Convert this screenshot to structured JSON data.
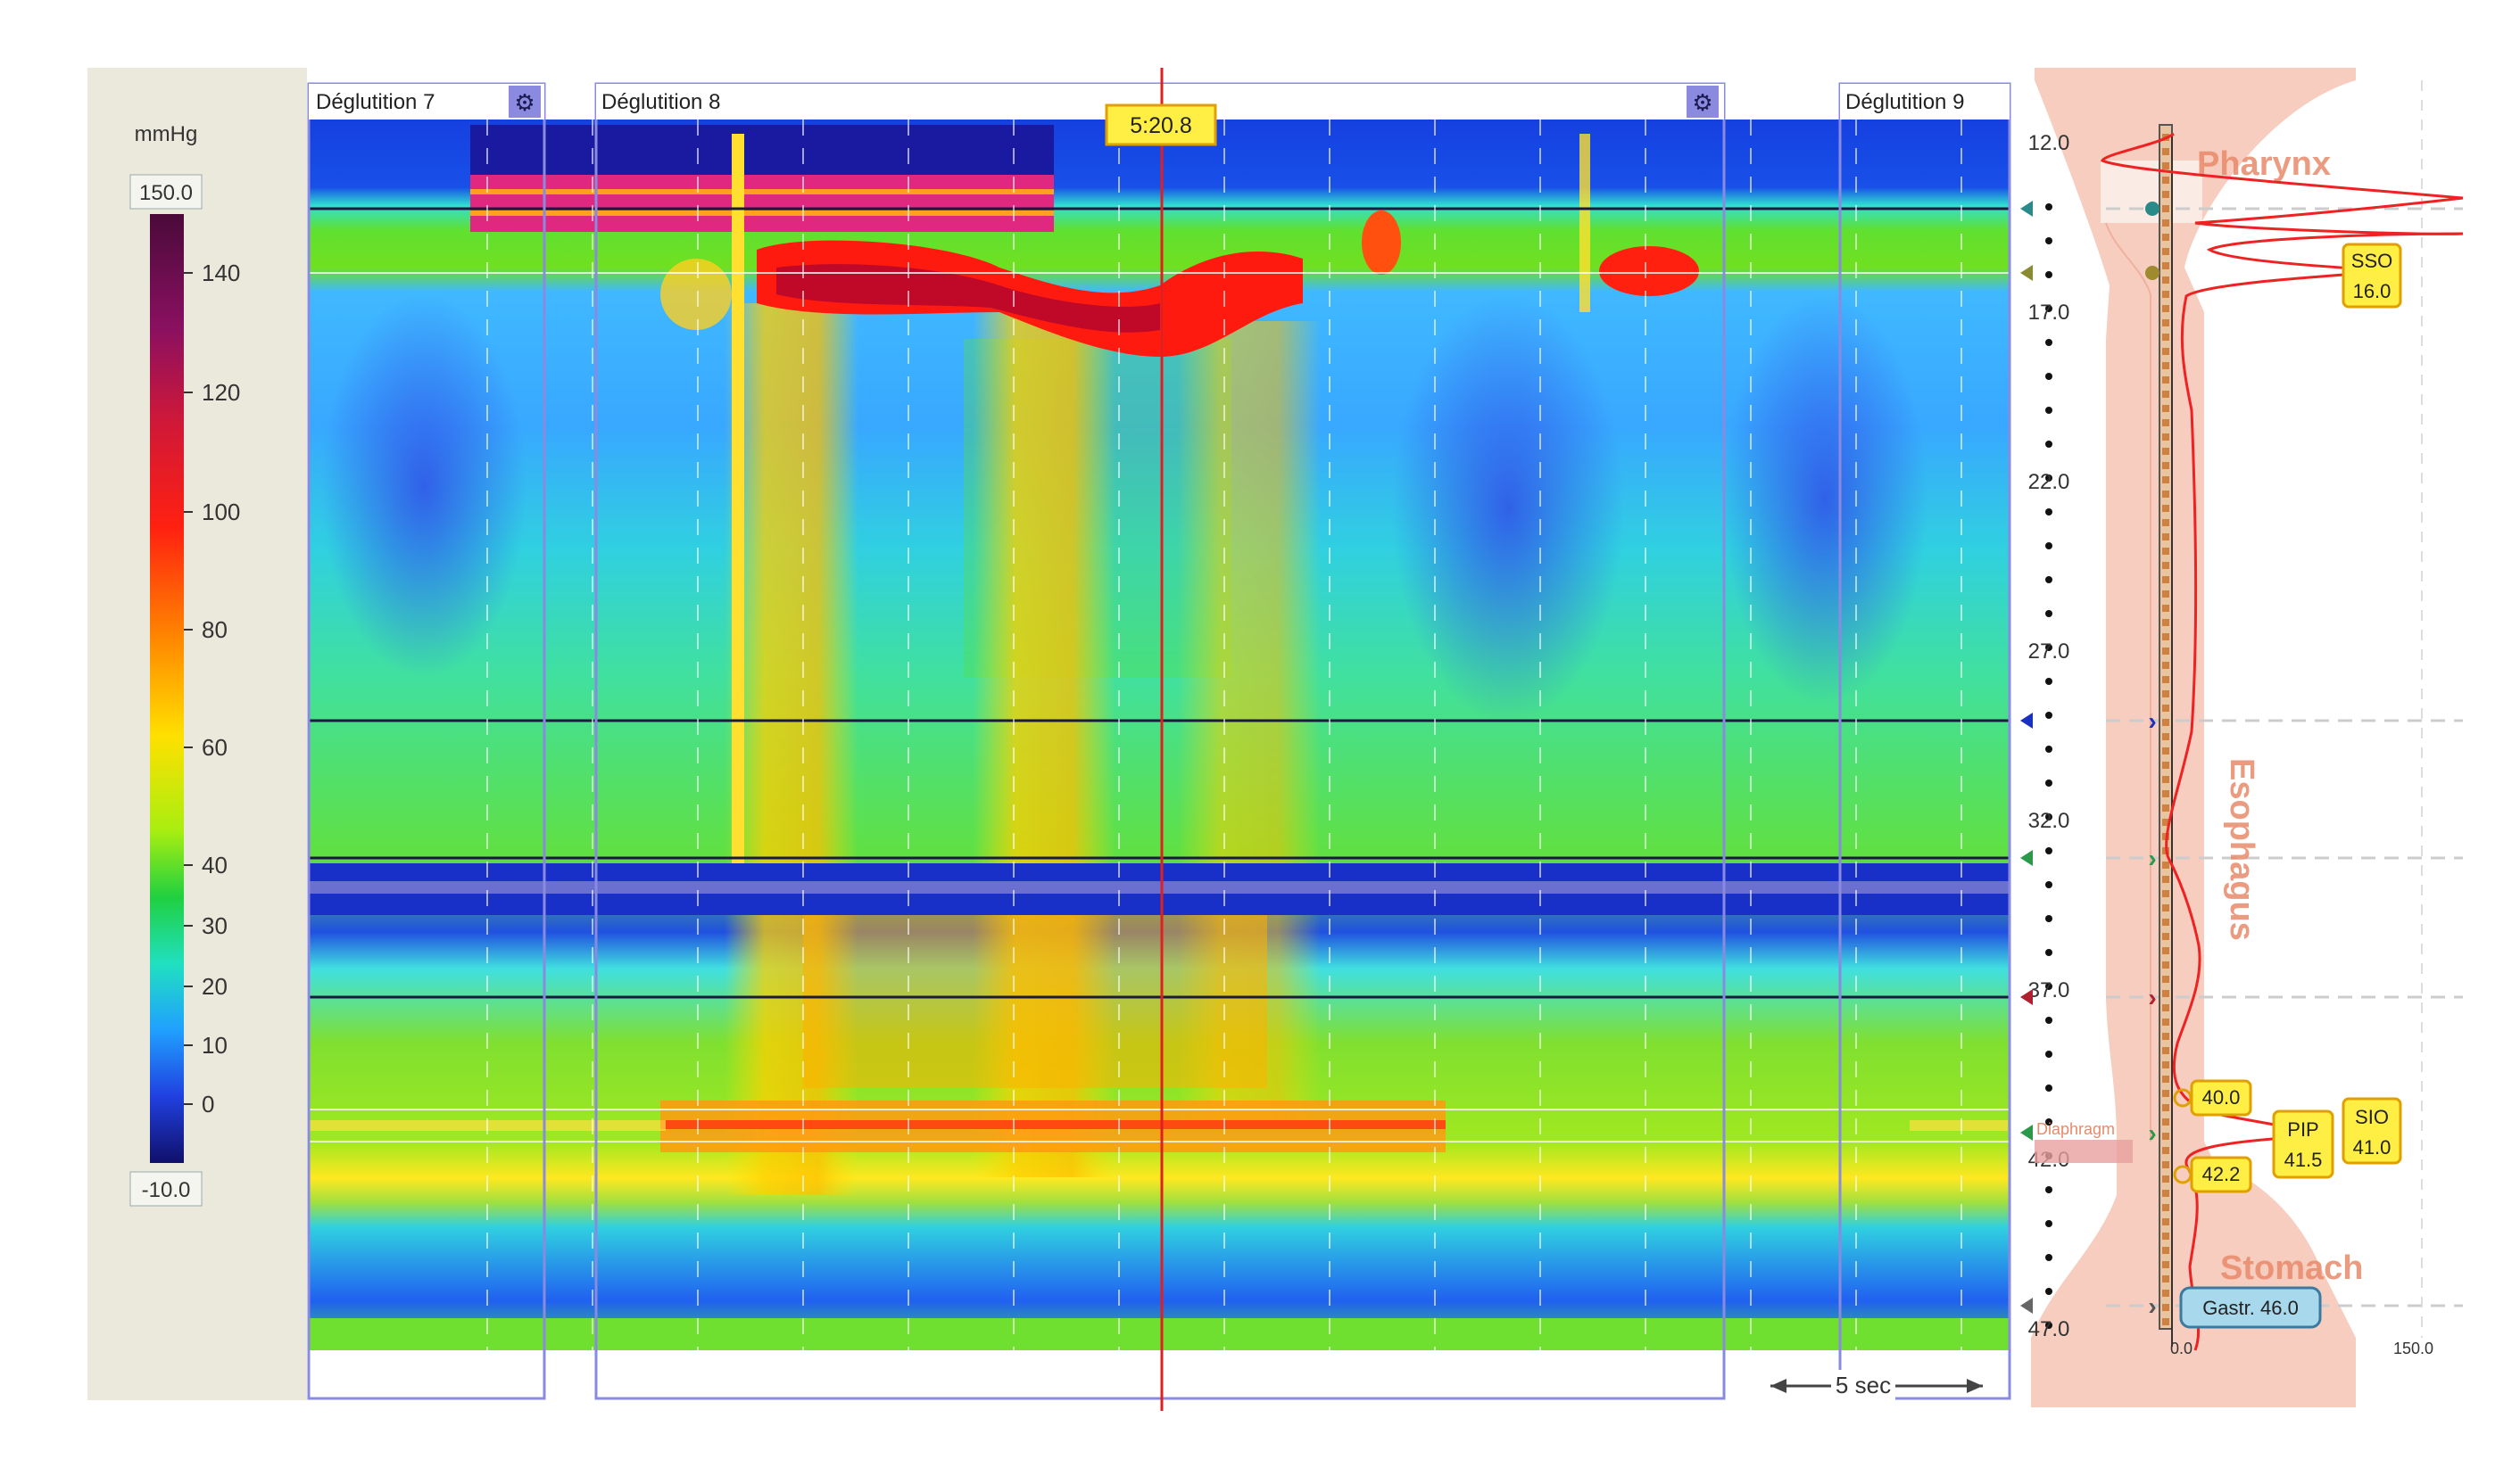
{
  "colorbar": {
    "unit": "mmHg",
    "max_label": "150.0",
    "min_label": "-10.0",
    "ticks": [
      "140",
      "120",
      "100",
      "80",
      "60",
      "40",
      "30",
      "20",
      "10",
      "0"
    ]
  },
  "swallows": [
    {
      "label": "Déglutition 7"
    },
    {
      "label": "Déglutition 8"
    },
    {
      "label": "Déglutition 9"
    }
  ],
  "cursor_time": "5:20.8",
  "time_scale": "5 sec",
  "profile": {
    "depth_ticks": [
      "12.0",
      "17.0",
      "22.0",
      "27.0",
      "32.0",
      "37.0",
      "42.0",
      "47.0"
    ],
    "x_min_label": "0.0",
    "x_max_label": "150.0",
    "regions": {
      "pharynx": "Pharynx",
      "esophagus": "Esophagus",
      "stomach": "Stomach",
      "diaphragm": "Diaphragm"
    },
    "markers": {
      "sso": [
        "SSO",
        "16.0"
      ],
      "sio": [
        "SIO",
        "41.0"
      ],
      "pip": [
        "PIP",
        "41.5"
      ],
      "m400": "40.0",
      "m422": "42.2",
      "gastr": "Gastr. 46.0"
    }
  },
  "colors": {
    "panel_bg": "#ebe8dc",
    "window_frame": "#8a8ae0",
    "cursor": "#e02020",
    "label_bg": "#ffee44",
    "label_border": "#e0a000",
    "body_fill": "#f6cdbf",
    "profile_line": "#ee2222",
    "region_text": "#e88a6a"
  },
  "chart_data": {
    "type": "heatmap",
    "title": "",
    "xlabel": "",
    "ylabel": "mmHg",
    "zlim": [
      -10,
      150
    ],
    "colorbar_ticks": [
      140,
      120,
      100,
      80,
      60,
      40,
      30,
      20,
      10,
      0
    ],
    "depth_range_cm": [
      12.0,
      47.0
    ],
    "profile_x_range": [
      0.0,
      150.0
    ],
    "swallows": [
      "Déglutition 7",
      "Déglutition 8",
      "Déglutition 9"
    ],
    "cursor": "5:20.8",
    "landmarks": [
      {
        "name": "SSO",
        "depth": 16.0
      },
      {
        "name": "PIP",
        "depth": 41.5
      },
      {
        "name": "SIO",
        "depth": 41.0
      },
      {
        "name": "marker",
        "depth": 40.0
      },
      {
        "name": "marker",
        "depth": 42.2
      },
      {
        "name": "Gastr.",
        "depth": 46.0
      }
    ]
  }
}
